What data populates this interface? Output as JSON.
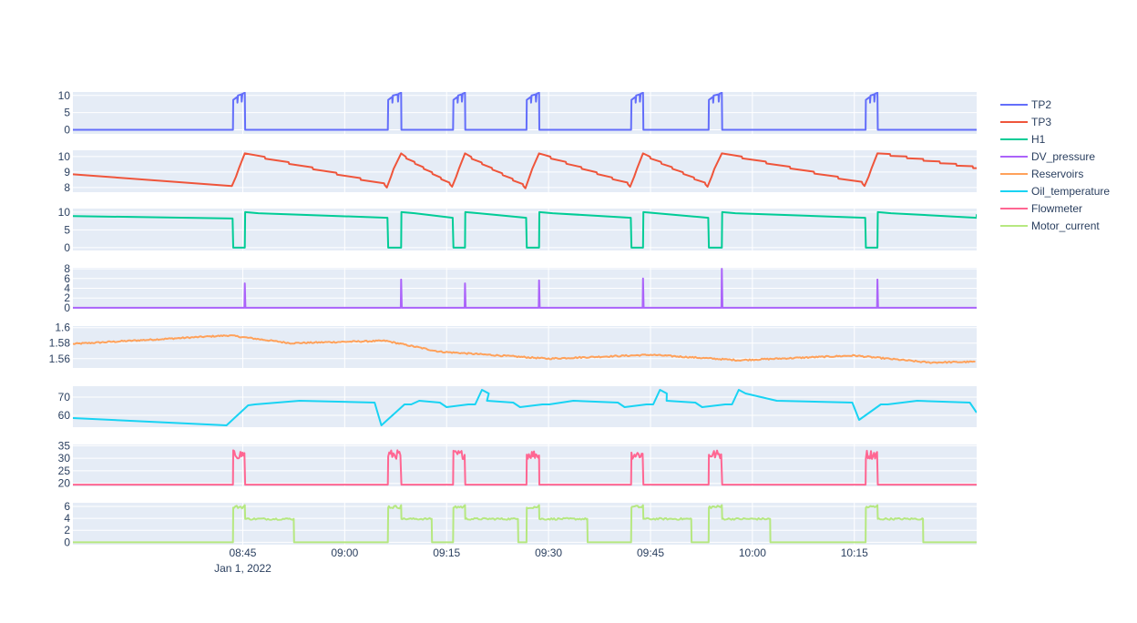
{
  "chart_data": {
    "type": "line",
    "subplots": "stacked",
    "legend_position": "top-right",
    "grid": true,
    "x_axis": {
      "range": [
        "2022-01-01 08:20",
        "2022-01-01 10:33"
      ],
      "tick_labels": [
        "08:45",
        "09:00",
        "09:15",
        "09:30",
        "09:45",
        "10:00",
        "10:15"
      ],
      "tick_times": [
        "08:45",
        "09:00",
        "09:15",
        "09:30",
        "09:45",
        "10:00",
        "10:15"
      ],
      "date_label": "Jan 1, 2022"
    },
    "cycles": [
      {
        "on": "08:43.6",
        "off": "08:45.3",
        "motor_off": "08:52.5"
      },
      {
        "on": "09:06.4",
        "off": "09:08.3",
        "motor_off": "09:12.8"
      },
      {
        "on": "09:16.0",
        "off": "09:17.7",
        "motor_off": "09:25.5"
      },
      {
        "on": "09:26.8",
        "off": "09:28.6",
        "motor_off": "09:35.7"
      },
      {
        "on": "09:42.2",
        "off": "09:43.9",
        "motor_off": "09:51.0"
      },
      {
        "on": "09:53.6",
        "off": "09:55.5",
        "motor_off": "10:02.6"
      },
      {
        "on": "10:16.7",
        "off": "10:18.4",
        "motor_off": "10:25.1"
      }
    ],
    "series": [
      {
        "name": "TP2",
        "color": "#636efa",
        "yrange": [
          -1.2,
          11
        ],
        "ticks": [
          "0",
          "5",
          "10"
        ],
        "tick_values": [
          0,
          5,
          10
        ]
      },
      {
        "name": "TP3",
        "color": "#ef553b",
        "yrange": [
          7.7,
          10.4
        ],
        "ticks": [
          "8",
          "9",
          "10"
        ],
        "tick_values": [
          8,
          9,
          10
        ]
      },
      {
        "name": "H1",
        "color": "#00cc96",
        "yrange": [
          -0.8,
          11
        ],
        "ticks": [
          "0",
          "5",
          "10"
        ],
        "tick_values": [
          0,
          5,
          10
        ]
      },
      {
        "name": "DV_pressure",
        "color": "#ab63fa",
        "yrange": [
          -0.2,
          8.2
        ],
        "ticks": [
          "0",
          "2",
          "4",
          "6",
          "8"
        ],
        "tick_values": [
          0,
          2,
          4,
          6,
          8
        ]
      },
      {
        "name": "Reservoirs",
        "color": "#ffa15a",
        "yrange": [
          1.548,
          1.602
        ],
        "ticks": [
          "1.56",
          "1.58",
          "1.6"
        ],
        "tick_values": [
          1.56,
          1.58,
          1.6
        ]
      },
      {
        "name": "Oil_temperature",
        "color": "#19d3f3",
        "yrange": [
          53.5,
          76
        ],
        "ticks": [
          "60",
          "70"
        ],
        "tick_values": [
          60,
          70
        ]
      },
      {
        "name": "Flowmeter",
        "color": "#ff6692",
        "yrange": [
          18.8,
          35.5
        ],
        "ticks": [
          "20",
          "25",
          "30",
          "35"
        ],
        "tick_values": [
          20,
          25,
          30,
          35
        ]
      },
      {
        "name": "Motor_current",
        "color": "#b6e880",
        "yrange": [
          -0.4,
          6.6
        ],
        "ticks": [
          "0",
          "2",
          "4",
          "6"
        ],
        "tick_values": [
          0,
          2,
          4,
          6
        ]
      }
    ]
  }
}
